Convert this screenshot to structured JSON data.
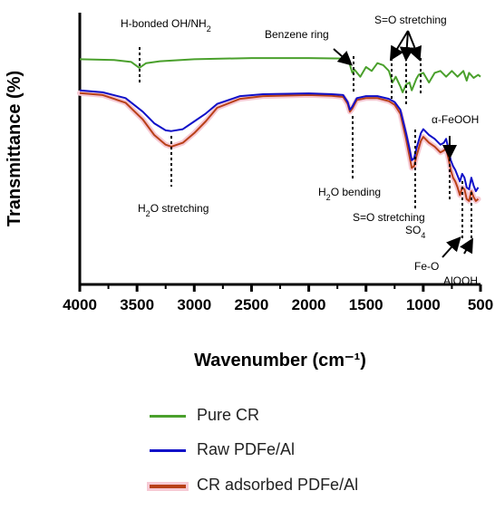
{
  "chart_data": {
    "type": "line",
    "xlabel": "Wavenumber (cm⁻¹)",
    "ylabel": "Transmittance (%)",
    "xlim": [
      4000,
      500
    ],
    "x_reversed": true,
    "xticks": [
      4000,
      3500,
      3000,
      2500,
      2000,
      1500,
      1000,
      500
    ],
    "grid": false,
    "legend_position": "bottom",
    "series": [
      {
        "name": "Pure CR",
        "color": "#4aa02c",
        "x": [
          4000,
          3700,
          3550,
          3480,
          3420,
          3300,
          3000,
          2500,
          2000,
          1700,
          1650,
          1620,
          1600,
          1550,
          1500,
          1450,
          1400,
          1350,
          1300,
          1270,
          1240,
          1200,
          1180,
          1150,
          1120,
          1100,
          1080,
          1060,
          1040,
          1000,
          950,
          900,
          850,
          800,
          750,
          700,
          650,
          620,
          600,
          560,
          520,
          500
        ],
        "y": [
          78,
          77.8,
          77.3,
          75.8,
          77,
          77.5,
          78,
          78.3,
          78.3,
          78.2,
          77.5,
          74.5,
          75.3,
          73.5,
          76,
          75,
          77,
          76.5,
          75,
          72,
          73.5,
          71,
          69.5,
          71.5,
          72,
          70,
          71.5,
          73,
          74,
          74.5,
          72,
          74.5,
          75,
          73.5,
          75,
          73.5,
          75,
          72.5,
          74.5,
          73.2,
          74,
          73.5
        ]
      },
      {
        "name": "Raw PDFe/Al",
        "color": "#1010c8",
        "x": [
          4000,
          3800,
          3600,
          3450,
          3350,
          3250,
          3200,
          3100,
          3000,
          2900,
          2800,
          2600,
          2400,
          2000,
          1800,
          1700,
          1660,
          1640,
          1620,
          1580,
          1500,
          1400,
          1300,
          1250,
          1200,
          1150,
          1120,
          1100,
          1080,
          1060,
          1040,
          1020,
          1000,
          950,
          900,
          850,
          820,
          800,
          780,
          760,
          740,
          720,
          700,
          680,
          660,
          640,
          620,
          600,
          580,
          560,
          540,
          520
        ],
        "y": [
          70,
          69.5,
          68,
          64.5,
          61.5,
          59.7,
          59.5,
          60,
          62,
          64,
          66.5,
          68.5,
          69,
          69.2,
          69,
          68.8,
          67,
          65,
          65.8,
          68,
          68.5,
          68.5,
          67.8,
          67,
          65,
          59,
          55,
          52,
          52.5,
          55,
          57,
          59,
          60,
          58.5,
          57.5,
          56,
          56.5,
          57.5,
          55,
          52,
          50.5,
          49.5,
          48,
          46.5,
          48.5,
          47.5,
          45,
          44.5,
          47.5,
          45.5,
          44,
          45
        ]
      },
      {
        "name": "CR adsorbed PDFe/Al",
        "color": "#b84018",
        "x": [
          4000,
          3800,
          3600,
          3450,
          3350,
          3250,
          3200,
          3100,
          3000,
          2900,
          2800,
          2600,
          2400,
          2000,
          1800,
          1700,
          1660,
          1640,
          1620,
          1580,
          1500,
          1400,
          1300,
          1250,
          1200,
          1150,
          1120,
          1100,
          1080,
          1060,
          1040,
          1020,
          1000,
          950,
          900,
          850,
          820,
          800,
          780,
          760,
          740,
          720,
          700,
          680,
          660,
          640,
          620,
          600,
          580,
          560,
          540,
          520
        ],
        "y": [
          69.3,
          68.8,
          66.8,
          62.5,
          58.5,
          56,
          55.5,
          56.5,
          59,
          62,
          65.5,
          67.8,
          68.5,
          68.8,
          68.6,
          68.3,
          66.5,
          64.5,
          65.3,
          67.5,
          68,
          68,
          67.2,
          66.3,
          64,
          57.5,
          53,
          50,
          50.5,
          53,
          55,
          57,
          58,
          56.5,
          55.5,
          54,
          54.5,
          55,
          52.5,
          49.5,
          47.5,
          46.5,
          45,
          43,
          45,
          44.5,
          42,
          41.5,
          44,
          42.5,
          41.5,
          42
        ]
      }
    ],
    "annotations": {
      "h_bonded": {
        "text_main": "H-bonded OH/NH",
        "text_sub": "2"
      },
      "benzene": {
        "text": "Benzene ring"
      },
      "so_stretch_top": {
        "text": "S=O stretching"
      },
      "alpha_feooh": {
        "text": "α-FeOOH"
      },
      "h2o_stretch": {
        "text_pre": "H",
        "text_sub": "2",
        "text_post": "O stretching"
      },
      "h2o_bend": {
        "text_pre": "H",
        "text_sub": "2",
        "text_post": "O bending"
      },
      "so_stretch_low": {
        "text": "S=O stretching"
      },
      "so4": {
        "text_main": "SO",
        "text_sub": "4"
      },
      "feo": {
        "text": "Fe-O"
      },
      "alooh": {
        "text": "AlOOH"
      }
    }
  }
}
